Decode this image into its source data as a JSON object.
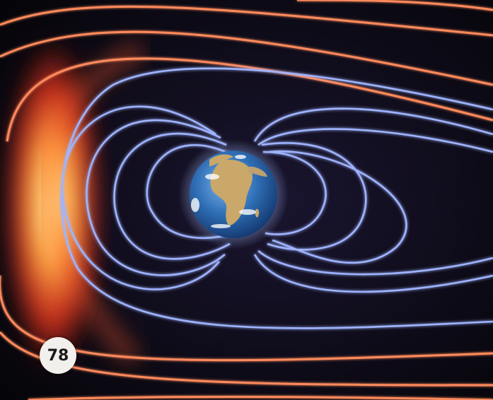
{
  "page": {
    "number": "78"
  },
  "scene": {
    "subject": "earth-magnetosphere",
    "colors": {
      "background": "#050407",
      "bow_shock_core": "#ffe07a",
      "bow_shock_outer": "#ff3a1e",
      "solar_wind_lines": "#ff8a5c",
      "field_lines": "#9fb4ff",
      "earth_ocean": "#2f6fb5",
      "earth_land": "#c9a86a"
    }
  }
}
